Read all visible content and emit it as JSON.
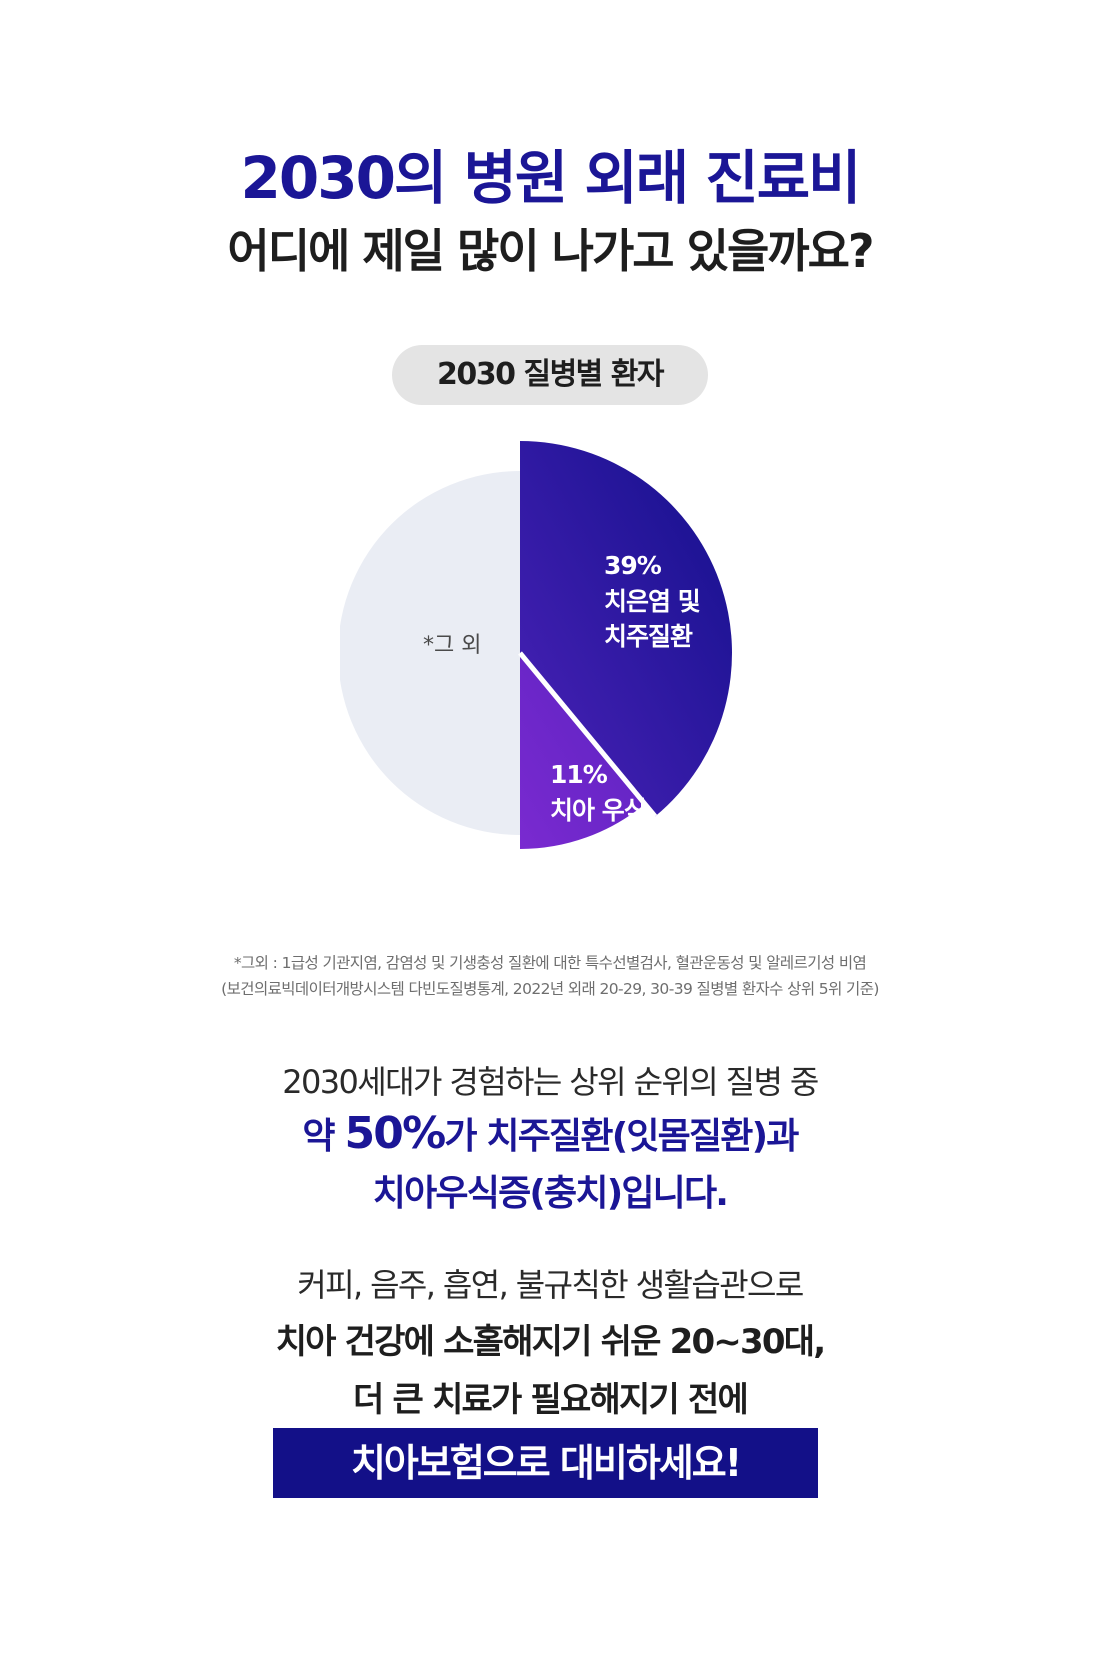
{
  "header": {
    "title_line1": "2030의 병원 외래 진료비",
    "title_line2": "어디에 제일 많이 나가고 있을까요?"
  },
  "chart_data": {
    "type": "pie",
    "title": "2030 질병별 환자",
    "slices": [
      {
        "name_line1": "치은염 및",
        "name_line2": "치주질환",
        "value": 39,
        "value_label": "39%",
        "color": "#1e1496"
      },
      {
        "name_line1": "치아 우식",
        "name_line2": "",
        "value": 11,
        "value_label": "11%",
        "color": "#6a26c6"
      },
      {
        "name_line1": "*그 외",
        "name_line2": "",
        "value": 50,
        "value_label": "",
        "color": "#eaedf4"
      }
    ]
  },
  "footnotes": {
    "line1": "*그외 : 1급성 기관지염, 감염성 및 기생충성 질환에 대한 특수선별검사, 혈관운동성 및 알레르기성 비염",
    "line2": "(보건의료빅데이터개방시스템 다빈도질병통계, 2022년 외래 20-29, 30-39 질병별 환자수 상위 5위 기준)"
  },
  "paragraph1": {
    "line1": "2030세대가 경험하는 상위 순위의 질병 중",
    "line2_prefix": "약 ",
    "line2_big": "50%",
    "line2_suffix": "가 치주질환(잇몸질환)과",
    "line3": "치아우식증(충치)입니다."
  },
  "paragraph2": {
    "line1": "커피, 음주, 흡연, 불규칙한 생활습관으로",
    "line2": "치아 건강에 소홀해지기 쉬운 20~30대,",
    "line3": "더 큰 치료가 필요해지기 전에"
  },
  "cta": {
    "label": "치아보험으로 대비하세요!"
  }
}
